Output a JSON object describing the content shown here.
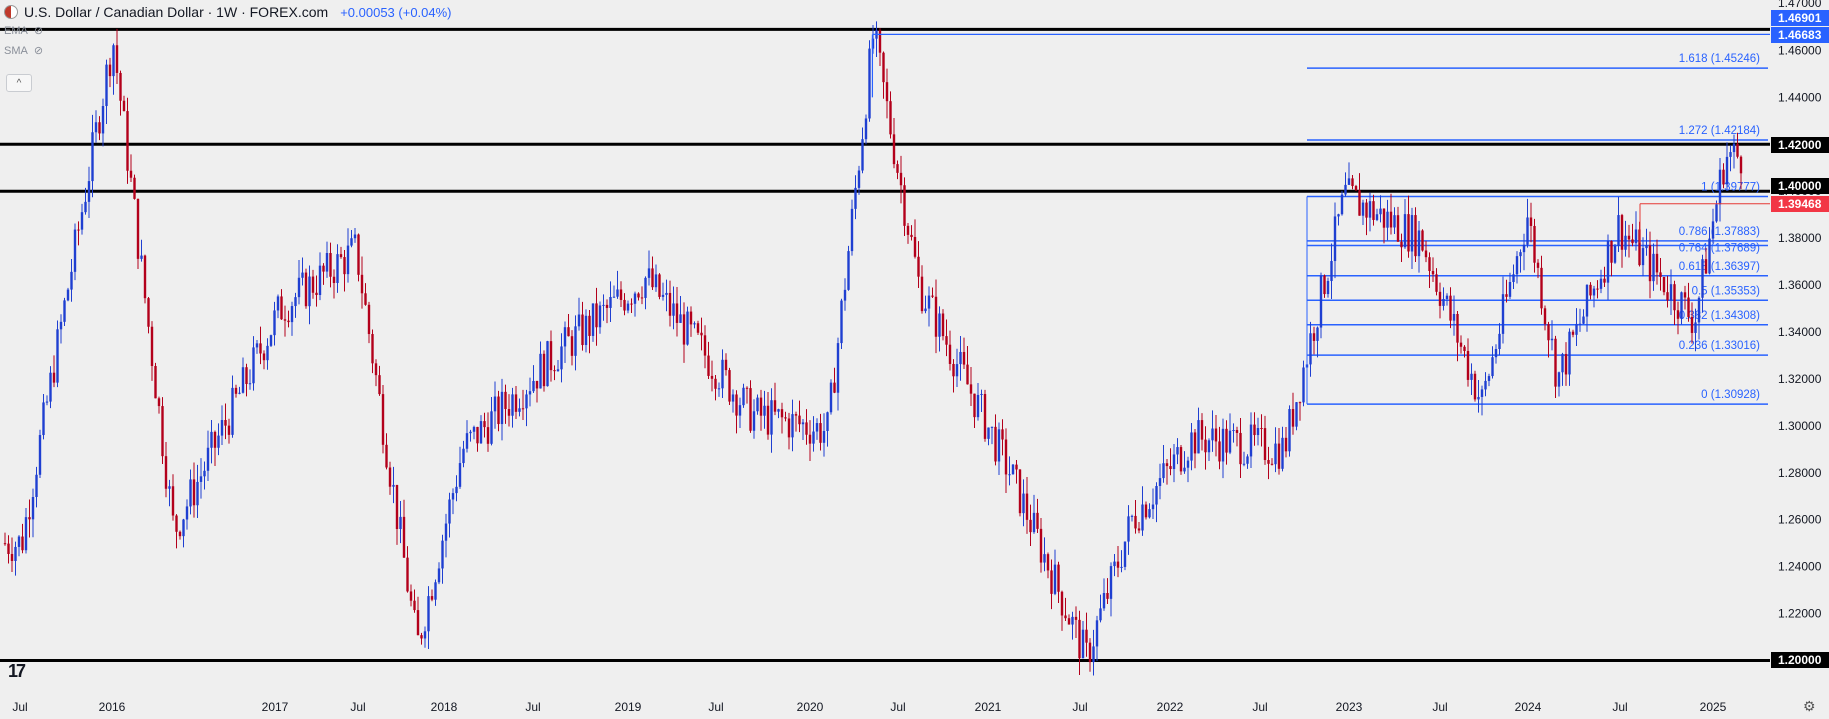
{
  "header": {
    "title": "U.S. Dollar / Canadian Dollar · 1W · FOREX.com",
    "change": "+0.00053 (+0.04%)",
    "indicators": [
      "EMA",
      "SMA"
    ]
  },
  "chart_data": {
    "type": "candlestick",
    "price_range": [
      1.19,
      1.47
    ],
    "y_ticks": [
      "1.20000",
      "1.22000",
      "1.24000",
      "1.26000",
      "1.28000",
      "1.30000",
      "1.32000",
      "1.34000",
      "1.36000",
      "1.38000",
      "1.40000",
      "1.42000",
      "1.44000",
      "1.46000"
    ],
    "x_ticks": [
      "Jul",
      "2016",
      "2017",
      "Jul",
      "2018",
      "Jul",
      "2019",
      "Jul",
      "2020",
      "Jul",
      "2021",
      "Jul",
      "2022",
      "Jul",
      "2023",
      "Jul",
      "2024",
      "Jul",
      "2025"
    ],
    "price_labels": [
      {
        "text": "1.47000",
        "style": "plain"
      },
      {
        "text": "1.46901",
        "style": "blue"
      },
      {
        "text": "1.46683",
        "style": "blue"
      },
      {
        "text": "1.42000",
        "style": "black"
      },
      {
        "text": "1.40000",
        "style": "black"
      },
      {
        "text": "1.39468",
        "style": "red"
      },
      {
        "text": "1.20000",
        "style": "black"
      }
    ],
    "horizontal_levels": [
      {
        "price": 1.469,
        "color": "#000000"
      },
      {
        "price": 1.42,
        "color": "#000000"
      },
      {
        "price": 1.4,
        "color": "#000000"
      },
      {
        "price": 1.2,
        "color": "#000000"
      }
    ],
    "fib_levels": [
      {
        "label": "1.618 (1.45246)",
        "price": 1.45246
      },
      {
        "label": "1.272 (1.42184)",
        "price": 1.42184
      },
      {
        "label": "1 (1.39777)",
        "price": 1.39777
      },
      {
        "label": "0.786 (1.37883)",
        "price": 1.37883
      },
      {
        "label": "0.764 (1.37689)",
        "price": 1.37689
      },
      {
        "label": "0.618 (1.36397)",
        "price": 1.36397
      },
      {
        "label": "0.5 (1.35353)",
        "price": 1.35353
      },
      {
        "label": "0.382 (1.34308)",
        "price": 1.34308
      },
      {
        "label": "0.236 (1.33016)",
        "price": 1.33016
      },
      {
        "label": "0 (1.30928)",
        "price": 1.30928
      }
    ],
    "key_points": [
      {
        "date": "2015-07",
        "price": 1.25
      },
      {
        "date": "2016-01",
        "price": 1.465
      },
      {
        "date": "2016-05",
        "price": 1.255
      },
      {
        "date": "2016-12",
        "price": 1.35
      },
      {
        "date": "2017-05",
        "price": 1.375
      },
      {
        "date": "2017-09",
        "price": 1.206
      },
      {
        "date": "2017-12",
        "price": 1.29
      },
      {
        "date": "2018-06",
        "price": 1.33
      },
      {
        "date": "2018-12",
        "price": 1.363
      },
      {
        "date": "2019-07",
        "price": 1.305
      },
      {
        "date": "2019-12",
        "price": 1.298
      },
      {
        "date": "2020-03",
        "price": 1.467
      },
      {
        "date": "2020-06",
        "price": 1.36
      },
      {
        "date": "2020-12",
        "price": 1.28
      },
      {
        "date": "2021-05",
        "price": 1.201
      },
      {
        "date": "2021-08",
        "price": 1.26
      },
      {
        "date": "2021-12",
        "price": 1.295
      },
      {
        "date": "2022-06",
        "price": 1.29
      },
      {
        "date": "2022-10",
        "price": 1.398
      },
      {
        "date": "2023-03",
        "price": 1.38
      },
      {
        "date": "2023-07",
        "price": 1.31
      },
      {
        "date": "2023-10",
        "price": 1.39
      },
      {
        "date": "2023-12",
        "price": 1.32
      },
      {
        "date": "2024-04",
        "price": 1.385
      },
      {
        "date": "2024-09",
        "price": 1.345
      },
      {
        "date": "2024-11",
        "price": 1.415
      }
    ]
  }
}
